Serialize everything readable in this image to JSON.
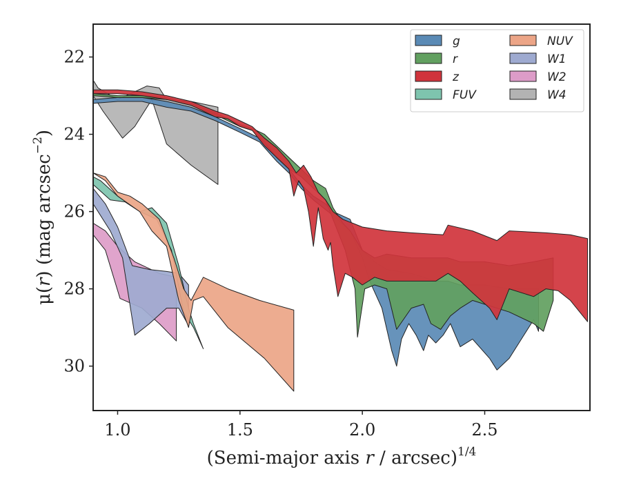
{
  "chart_data": {
    "type": "area",
    "xlim": [
      0.9,
      2.93
    ],
    "ylim": [
      31.15,
      21.15
    ],
    "y_inverted": true,
    "xticks": [
      1.0,
      1.5,
      2.0,
      2.5
    ],
    "xtick_labels": [
      "1.0",
      "1.5",
      "2.0",
      "2.5"
    ],
    "yticks": [
      22,
      24,
      26,
      28,
      30
    ],
    "ytick_labels": [
      "22",
      "24",
      "26",
      "28",
      "30"
    ],
    "xlabel_main": "(Semi-major axis ",
    "xlabel_var": "r",
    "xlabel_rest": " / arcsec)",
    "xlabel_sup": "1/4",
    "ylabel_main": "μ(",
    "ylabel_var": "r",
    "ylabel_rest": ") (mag arcsec",
    "ylabel_sup": "−2",
    "ylabel_close": ")",
    "grid": false,
    "legend_placement": "top-right",
    "series": [
      {
        "name": "W4",
        "color": "#b3b3b3",
        "upper": [
          [
            0.9,
            22.6
          ],
          [
            0.92,
            22.8
          ],
          [
            1.0,
            23.1
          ],
          [
            1.07,
            22.9
          ],
          [
            1.12,
            22.75
          ],
          [
            1.17,
            22.8
          ],
          [
            1.2,
            23.1
          ],
          [
            1.3,
            23.15
          ],
          [
            1.41,
            23.3
          ]
        ],
        "lower": [
          [
            0.9,
            23.0
          ],
          [
            0.94,
            23.4
          ],
          [
            1.02,
            24.1
          ],
          [
            1.07,
            23.8
          ],
          [
            1.14,
            23.1
          ],
          [
            1.2,
            24.25
          ],
          [
            1.3,
            24.8
          ],
          [
            1.41,
            25.3
          ]
        ]
      },
      {
        "name": "W2",
        "color": "#dd9cc8",
        "upper": [
          [
            0.9,
            26.3
          ],
          [
            0.95,
            26.5
          ],
          [
            1.0,
            26.9
          ],
          [
            1.07,
            27.3
          ],
          [
            1.17,
            27.6
          ],
          [
            1.24,
            27.7
          ]
        ],
        "lower": [
          [
            0.9,
            26.6
          ],
          [
            0.95,
            27.0
          ],
          [
            1.01,
            28.25
          ],
          [
            1.1,
            28.5
          ],
          [
            1.17,
            28.9
          ],
          [
            1.24,
            29.35
          ]
        ]
      },
      {
        "name": "W1",
        "color": "#9eaad0",
        "upper": [
          [
            0.9,
            25.4
          ],
          [
            0.95,
            25.8
          ],
          [
            1.0,
            26.4
          ],
          [
            1.06,
            27.4
          ],
          [
            1.13,
            27.5
          ],
          [
            1.2,
            27.55
          ],
          [
            1.25,
            27.6
          ],
          [
            1.29,
            27.9
          ]
        ],
        "lower": [
          [
            0.9,
            25.8
          ],
          [
            0.97,
            26.5
          ],
          [
            1.02,
            27.2
          ],
          [
            1.07,
            29.2
          ],
          [
            1.13,
            28.9
          ],
          [
            1.2,
            28.5
          ],
          [
            1.25,
            28.5
          ],
          [
            1.29,
            28.95
          ]
        ]
      },
      {
        "name": "FUV",
        "color": "#7ec4ae",
        "upper": [
          [
            0.9,
            25.1
          ],
          [
            0.93,
            25.2
          ],
          [
            1.0,
            25.6
          ],
          [
            1.09,
            26.0
          ],
          [
            1.14,
            25.9
          ],
          [
            1.2,
            26.3
          ],
          [
            1.25,
            27.4
          ],
          [
            1.29,
            28.5
          ],
          [
            1.31,
            28.9
          ]
        ],
        "lower": [
          [
            0.9,
            25.3
          ],
          [
            0.97,
            25.7
          ],
          [
            1.03,
            25.75
          ],
          [
            1.09,
            26.0
          ],
          [
            1.16,
            26.2
          ],
          [
            1.22,
            27.0
          ],
          [
            1.27,
            28.6
          ],
          [
            1.31,
            29.0
          ],
          [
            1.35,
            29.55
          ]
        ]
      },
      {
        "name": "NUV",
        "color": "#eca587",
        "upper": [
          [
            0.9,
            25.0
          ],
          [
            0.95,
            25.1
          ],
          [
            1.0,
            25.5
          ],
          [
            1.05,
            25.6
          ],
          [
            1.1,
            25.8
          ],
          [
            1.17,
            26.2
          ],
          [
            1.23,
            27.2
          ],
          [
            1.27,
            28.0
          ],
          [
            1.3,
            28.3
          ],
          [
            1.35,
            27.7
          ],
          [
            1.45,
            28.0
          ],
          [
            1.58,
            28.3
          ],
          [
            1.72,
            28.55
          ]
        ],
        "lower": [
          [
            0.9,
            25.0
          ],
          [
            0.95,
            25.2
          ],
          [
            1.0,
            25.6
          ],
          [
            1.09,
            26.0
          ],
          [
            1.14,
            26.5
          ],
          [
            1.2,
            26.9
          ],
          [
            1.25,
            28.3
          ],
          [
            1.29,
            29.0
          ],
          [
            1.31,
            28.3
          ],
          [
            1.35,
            28.2
          ],
          [
            1.45,
            29.0
          ],
          [
            1.6,
            29.8
          ],
          [
            1.72,
            30.65
          ]
        ]
      },
      {
        "name": "g",
        "color": "#5a8ab5",
        "upper": [
          [
            0.9,
            23.1
          ],
          [
            1.0,
            23.05
          ],
          [
            1.1,
            23.05
          ],
          [
            1.2,
            23.15
          ],
          [
            1.3,
            23.3
          ],
          [
            1.4,
            23.55
          ],
          [
            1.5,
            23.85
          ],
          [
            1.58,
            24.1
          ],
          [
            1.65,
            24.6
          ],
          [
            1.7,
            24.9
          ],
          [
            1.75,
            25.3
          ],
          [
            1.8,
            25.6
          ],
          [
            1.85,
            25.8
          ],
          [
            1.88,
            26.0
          ],
          [
            1.95,
            26.2
          ],
          [
            2.0,
            27.0
          ],
          [
            2.05,
            27.3
          ],
          [
            2.1,
            27.5
          ],
          [
            2.2,
            27.6
          ],
          [
            2.3,
            27.8
          ],
          [
            2.35,
            27.8
          ],
          [
            2.4,
            27.9
          ],
          [
            2.5,
            27.9
          ],
          [
            2.6,
            28.0
          ],
          [
            2.7,
            28.0
          ],
          [
            2.72,
            28.0
          ]
        ],
        "lower": [
          [
            0.9,
            23.2
          ],
          [
            1.0,
            23.15
          ],
          [
            1.1,
            23.15
          ],
          [
            1.2,
            23.3
          ],
          [
            1.3,
            23.4
          ],
          [
            1.4,
            23.65
          ],
          [
            1.5,
            23.95
          ],
          [
            1.58,
            24.2
          ],
          [
            1.65,
            24.7
          ],
          [
            1.7,
            25.0
          ],
          [
            1.75,
            25.4
          ],
          [
            1.8,
            25.7
          ],
          [
            1.85,
            25.95
          ],
          [
            1.88,
            26.1
          ],
          [
            1.95,
            26.5
          ],
          [
            2.0,
            27.2
          ],
          [
            2.03,
            27.8
          ],
          [
            2.08,
            28.5
          ],
          [
            2.12,
            29.6
          ],
          [
            2.14,
            30.0
          ],
          [
            2.16,
            29.3
          ],
          [
            2.19,
            28.9
          ],
          [
            2.22,
            29.2
          ],
          [
            2.25,
            29.6
          ],
          [
            2.27,
            29.2
          ],
          [
            2.3,
            29.4
          ],
          [
            2.33,
            29.2
          ],
          [
            2.36,
            28.9
          ],
          [
            2.4,
            29.5
          ],
          [
            2.45,
            29.3
          ],
          [
            2.52,
            29.8
          ],
          [
            2.55,
            30.1
          ],
          [
            2.6,
            29.8
          ],
          [
            2.65,
            29.3
          ],
          [
            2.7,
            28.8
          ],
          [
            2.72,
            29.1
          ]
        ]
      },
      {
        "name": "r",
        "color": "#62a060",
        "upper": [
          [
            0.9,
            22.95
          ],
          [
            1.0,
            23.0
          ],
          [
            1.1,
            23.0
          ],
          [
            1.2,
            23.05
          ],
          [
            1.3,
            23.2
          ],
          [
            1.4,
            23.45
          ],
          [
            1.5,
            23.75
          ],
          [
            1.55,
            23.85
          ],
          [
            1.6,
            24.0
          ],
          [
            1.65,
            24.3
          ],
          [
            1.7,
            24.6
          ],
          [
            1.75,
            24.9
          ],
          [
            1.8,
            25.2
          ],
          [
            1.85,
            25.4
          ],
          [
            1.88,
            25.9
          ],
          [
            1.92,
            26.3
          ],
          [
            1.95,
            26.5
          ],
          [
            2.0,
            27.0
          ],
          [
            2.05,
            27.2
          ],
          [
            2.1,
            27.1
          ],
          [
            2.2,
            27.2
          ],
          [
            2.3,
            27.2
          ],
          [
            2.35,
            27.2
          ],
          [
            2.4,
            27.3
          ],
          [
            2.5,
            27.3
          ],
          [
            2.6,
            27.4
          ],
          [
            2.7,
            27.3
          ],
          [
            2.78,
            27.2
          ]
        ],
        "lower": [
          [
            0.9,
            23.0
          ],
          [
            1.0,
            23.05
          ],
          [
            1.1,
            23.05
          ],
          [
            1.2,
            23.1
          ],
          [
            1.3,
            23.25
          ],
          [
            1.4,
            23.5
          ],
          [
            1.5,
            23.8
          ],
          [
            1.55,
            23.9
          ],
          [
            1.6,
            24.2
          ],
          [
            1.65,
            24.6
          ],
          [
            1.7,
            24.9
          ],
          [
            1.75,
            25.1
          ],
          [
            1.8,
            25.4
          ],
          [
            1.85,
            25.7
          ],
          [
            1.88,
            26.2
          ],
          [
            1.93,
            27.0
          ],
          [
            1.97,
            28.0
          ],
          [
            1.98,
            29.25
          ],
          [
            2.01,
            28.0
          ],
          [
            2.05,
            27.9
          ],
          [
            2.1,
            28.0
          ],
          [
            2.14,
            29.05
          ],
          [
            2.2,
            28.5
          ],
          [
            2.25,
            28.4
          ],
          [
            2.28,
            28.9
          ],
          [
            2.32,
            29.05
          ],
          [
            2.36,
            28.7
          ],
          [
            2.4,
            28.5
          ],
          [
            2.45,
            28.3
          ],
          [
            2.5,
            28.4
          ],
          [
            2.6,
            28.6
          ],
          [
            2.7,
            28.9
          ],
          [
            2.74,
            29.1
          ],
          [
            2.78,
            28.3
          ]
        ]
      },
      {
        "name": "z",
        "color": "#d0343c",
        "upper": [
          [
            0.9,
            22.85
          ],
          [
            1.0,
            22.85
          ],
          [
            1.1,
            22.9
          ],
          [
            1.2,
            23.0
          ],
          [
            1.3,
            23.15
          ],
          [
            1.4,
            23.4
          ],
          [
            1.45,
            23.5
          ],
          [
            1.5,
            23.65
          ],
          [
            1.55,
            23.8
          ],
          [
            1.6,
            24.1
          ],
          [
            1.65,
            24.35
          ],
          [
            1.7,
            24.7
          ],
          [
            1.73,
            25.0
          ],
          [
            1.76,
            24.8
          ],
          [
            1.79,
            25.1
          ],
          [
            1.82,
            25.5
          ],
          [
            1.85,
            25.7
          ],
          [
            1.88,
            26.0
          ],
          [
            1.92,
            26.2
          ],
          [
            1.96,
            26.3
          ],
          [
            2.0,
            26.4
          ],
          [
            2.1,
            26.5
          ],
          [
            2.2,
            26.55
          ],
          [
            2.33,
            26.6
          ],
          [
            2.35,
            26.35
          ],
          [
            2.45,
            26.5
          ],
          [
            2.55,
            26.75
          ],
          [
            2.6,
            26.5
          ],
          [
            2.75,
            26.55
          ],
          [
            2.85,
            26.6
          ],
          [
            2.92,
            26.7
          ]
        ],
        "lower": [
          [
            0.9,
            22.95
          ],
          [
            1.0,
            22.95
          ],
          [
            1.1,
            23.0
          ],
          [
            1.2,
            23.1
          ],
          [
            1.3,
            23.25
          ],
          [
            1.4,
            23.55
          ],
          [
            1.45,
            23.6
          ],
          [
            1.5,
            23.8
          ],
          [
            1.55,
            23.9
          ],
          [
            1.6,
            24.3
          ],
          [
            1.65,
            24.6
          ],
          [
            1.7,
            24.9
          ],
          [
            1.72,
            25.6
          ],
          [
            1.74,
            25.2
          ],
          [
            1.76,
            25.4
          ],
          [
            1.78,
            26.0
          ],
          [
            1.8,
            26.9
          ],
          [
            1.82,
            25.9
          ],
          [
            1.84,
            26.7
          ],
          [
            1.86,
            27.0
          ],
          [
            1.87,
            26.8
          ],
          [
            1.88,
            27.4
          ],
          [
            1.9,
            28.2
          ],
          [
            1.93,
            27.6
          ],
          [
            1.96,
            27.7
          ],
          [
            2.0,
            27.9
          ],
          [
            2.05,
            27.7
          ],
          [
            2.1,
            27.8
          ],
          [
            2.2,
            27.8
          ],
          [
            2.3,
            27.8
          ],
          [
            2.35,
            27.6
          ],
          [
            2.4,
            27.8
          ],
          [
            2.45,
            28.1
          ],
          [
            2.52,
            28.5
          ],
          [
            2.55,
            28.8
          ],
          [
            2.6,
            28.0
          ],
          [
            2.7,
            28.2
          ],
          [
            2.75,
            28.0
          ],
          [
            2.8,
            28.05
          ],
          [
            2.85,
            28.3
          ],
          [
            2.92,
            28.85
          ]
        ]
      }
    ]
  }
}
